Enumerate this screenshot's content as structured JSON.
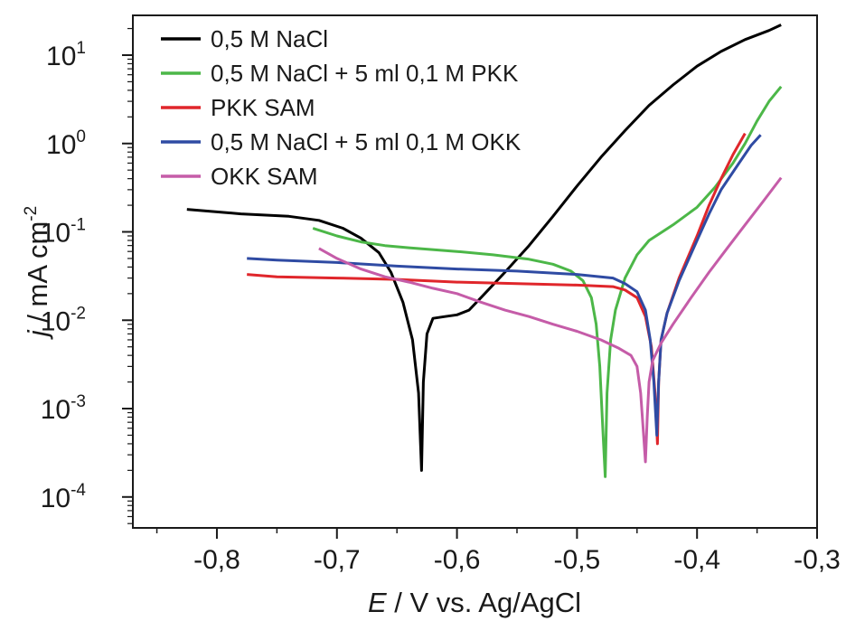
{
  "chart_data": {
    "type": "line",
    "xlabel": {
      "symbol": "E",
      "rest": " / V vs. Ag/AgCl"
    },
    "ylabel": {
      "symbol": "j",
      "rest": " / mA cm",
      "sup": "-2"
    },
    "xlim": [
      -0.87,
      -0.3
    ],
    "ylim_log10": [
      -4.35,
      1.45
    ],
    "yscale": "log",
    "x_ticks": [
      {
        "value": -0.8,
        "label": "-0,8"
      },
      {
        "value": -0.7,
        "label": "-0,7"
      },
      {
        "value": -0.6,
        "label": "-0,6"
      },
      {
        "value": -0.5,
        "label": "-0,5"
      },
      {
        "value": -0.4,
        "label": "-0,4"
      },
      {
        "value": -0.3,
        "label": "-0,3"
      }
    ],
    "y_ticks": [
      {
        "exp": 1,
        "base": "10",
        "sup": "1"
      },
      {
        "exp": 0,
        "base": "10",
        "sup": "0"
      },
      {
        "exp": -1,
        "base": "10",
        "sup": "-1"
      },
      {
        "exp": -2,
        "base": "10",
        "sup": "-2"
      },
      {
        "exp": -3,
        "base": "10",
        "sup": "-3"
      },
      {
        "exp": -4,
        "base": "10",
        "sup": "-4"
      }
    ],
    "legend_position": "top-left",
    "grid": false,
    "series": [
      {
        "name": "0,5 M NaCl",
        "color": "#000000",
        "points": [
          [
            -0.825,
            0.18
          ],
          [
            -0.78,
            0.16
          ],
          [
            -0.74,
            0.15
          ],
          [
            -0.715,
            0.135
          ],
          [
            -0.695,
            0.11
          ],
          [
            -0.68,
            0.085
          ],
          [
            -0.665,
            0.058
          ],
          [
            -0.655,
            0.035
          ],
          [
            -0.645,
            0.016
          ],
          [
            -0.637,
            0.006
          ],
          [
            -0.632,
            0.0015
          ],
          [
            -0.6295,
            0.0002
          ],
          [
            -0.628,
            0.002
          ],
          [
            -0.625,
            0.007
          ],
          [
            -0.62,
            0.0105
          ],
          [
            -0.61,
            0.011
          ],
          [
            -0.6,
            0.0115
          ],
          [
            -0.59,
            0.013
          ],
          [
            -0.58,
            0.018
          ],
          [
            -0.56,
            0.035
          ],
          [
            -0.54,
            0.07
          ],
          [
            -0.52,
            0.15
          ],
          [
            -0.5,
            0.33
          ],
          [
            -0.48,
            0.7
          ],
          [
            -0.46,
            1.4
          ],
          [
            -0.44,
            2.7
          ],
          [
            -0.42,
            4.6
          ],
          [
            -0.4,
            7.5
          ],
          [
            -0.38,
            11
          ],
          [
            -0.36,
            15
          ],
          [
            -0.34,
            19
          ],
          [
            -0.33,
            22
          ]
        ]
      },
      {
        "name": "0,5 M NaCl + 5 ml 0,1 M PKK",
        "color": "#4cb748",
        "points": [
          [
            -0.72,
            0.11
          ],
          [
            -0.7,
            0.09
          ],
          [
            -0.68,
            0.077
          ],
          [
            -0.66,
            0.07
          ],
          [
            -0.64,
            0.066
          ],
          [
            -0.6,
            0.06
          ],
          [
            -0.57,
            0.055
          ],
          [
            -0.54,
            0.049
          ],
          [
            -0.52,
            0.043
          ],
          [
            -0.505,
            0.036
          ],
          [
            -0.495,
            0.028
          ],
          [
            -0.488,
            0.018
          ],
          [
            -0.484,
            0.009
          ],
          [
            -0.481,
            0.003
          ],
          [
            -0.4785,
            0.0006
          ],
          [
            -0.4765,
            0.00017
          ],
          [
            -0.475,
            0.0015
          ],
          [
            -0.472,
            0.006
          ],
          [
            -0.468,
            0.013
          ],
          [
            -0.46,
            0.03
          ],
          [
            -0.45,
            0.055
          ],
          [
            -0.44,
            0.08
          ],
          [
            -0.42,
            0.12
          ],
          [
            -0.4,
            0.19
          ],
          [
            -0.385,
            0.32
          ],
          [
            -0.37,
            0.6
          ],
          [
            -0.36,
            1.0
          ],
          [
            -0.35,
            1.8
          ],
          [
            -0.34,
            3.0
          ],
          [
            -0.33,
            4.4
          ]
        ]
      },
      {
        "name": "PKK SAM",
        "color": "#e0262b",
        "points": [
          [
            -0.775,
            0.033
          ],
          [
            -0.75,
            0.031
          ],
          [
            -0.7,
            0.03
          ],
          [
            -0.65,
            0.029
          ],
          [
            -0.6,
            0.027
          ],
          [
            -0.55,
            0.026
          ],
          [
            -0.5,
            0.025
          ],
          [
            -0.47,
            0.024
          ],
          [
            -0.46,
            0.022
          ],
          [
            -0.45,
            0.018
          ],
          [
            -0.443,
            0.011
          ],
          [
            -0.438,
            0.005
          ],
          [
            -0.435,
            0.0015
          ],
          [
            -0.433,
            0.0004
          ],
          [
            -0.432,
            0.002
          ],
          [
            -0.43,
            0.006
          ],
          [
            -0.425,
            0.012
          ],
          [
            -0.415,
            0.03
          ],
          [
            -0.4,
            0.09
          ],
          [
            -0.39,
            0.2
          ],
          [
            -0.38,
            0.4
          ],
          [
            -0.37,
            0.75
          ],
          [
            -0.36,
            1.3
          ]
        ]
      },
      {
        "name": "0,5 M NaCl + 5 ml 0,1 M OKK",
        "color": "#2f4ba3",
        "points": [
          [
            -0.775,
            0.05
          ],
          [
            -0.75,
            0.048
          ],
          [
            -0.7,
            0.045
          ],
          [
            -0.65,
            0.041
          ],
          [
            -0.6,
            0.038
          ],
          [
            -0.55,
            0.036
          ],
          [
            -0.5,
            0.033
          ],
          [
            -0.47,
            0.03
          ],
          [
            -0.46,
            0.026
          ],
          [
            -0.45,
            0.021
          ],
          [
            -0.443,
            0.013
          ],
          [
            -0.439,
            0.006
          ],
          [
            -0.436,
            0.002
          ],
          [
            -0.4335,
            0.0005
          ],
          [
            -0.432,
            0.002
          ],
          [
            -0.43,
            0.006
          ],
          [
            -0.425,
            0.012
          ],
          [
            -0.415,
            0.028
          ],
          [
            -0.4,
            0.08
          ],
          [
            -0.39,
            0.16
          ],
          [
            -0.38,
            0.3
          ],
          [
            -0.365,
            0.6
          ],
          [
            -0.355,
            0.95
          ],
          [
            -0.347,
            1.25
          ]
        ]
      },
      {
        "name": "OKK SAM",
        "color": "#c55ca8",
        "points": [
          [
            -0.715,
            0.065
          ],
          [
            -0.7,
            0.05
          ],
          [
            -0.68,
            0.038
          ],
          [
            -0.66,
            0.031
          ],
          [
            -0.64,
            0.027
          ],
          [
            -0.62,
            0.023
          ],
          [
            -0.6,
            0.02
          ],
          [
            -0.58,
            0.016
          ],
          [
            -0.56,
            0.013
          ],
          [
            -0.54,
            0.011
          ],
          [
            -0.52,
            0.009
          ],
          [
            -0.5,
            0.0075
          ],
          [
            -0.48,
            0.006
          ],
          [
            -0.465,
            0.0048
          ],
          [
            -0.455,
            0.004
          ],
          [
            -0.45,
            0.003
          ],
          [
            -0.447,
            0.0015
          ],
          [
            -0.4445,
            0.0005
          ],
          [
            -0.443,
            0.00025
          ],
          [
            -0.4415,
            0.0008
          ],
          [
            -0.44,
            0.002
          ],
          [
            -0.437,
            0.0035
          ],
          [
            -0.43,
            0.0055
          ],
          [
            -0.42,
            0.009
          ],
          [
            -0.405,
            0.018
          ],
          [
            -0.39,
            0.035
          ],
          [
            -0.375,
            0.065
          ],
          [
            -0.36,
            0.12
          ],
          [
            -0.345,
            0.22
          ],
          [
            -0.33,
            0.41
          ]
        ]
      }
    ]
  }
}
